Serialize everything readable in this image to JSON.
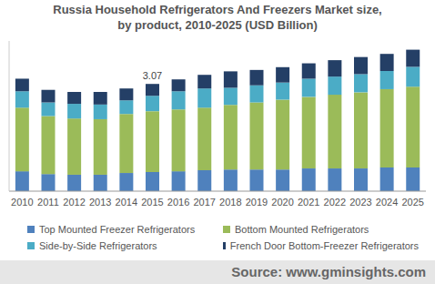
{
  "chart_data": {
    "type": "bar",
    "title": "Russia Household Refrigerators And Freezers Market size,",
    "subtitle": "by product, 2010-2025 (USD Billion)",
    "source": "Source: www.gminsights.com",
    "categories": [
      "2010",
      "2011",
      "2012",
      "2013",
      "2014",
      "2015",
      "2016",
      "2017",
      "2018",
      "2019",
      "2020",
      "2021",
      "2022",
      "2023",
      "2024",
      "2025"
    ],
    "series": [
      {
        "name": "Top Mounted Freezer Refrigerators",
        "color": "#4f81bd",
        "values": [
          0.57,
          0.49,
          0.47,
          0.47,
          0.52,
          0.55,
          0.57,
          0.6,
          0.62,
          0.62,
          0.62,
          0.65,
          0.65,
          0.65,
          0.68,
          0.68
        ]
      },
      {
        "name": "Bottom Mounted Refrigerators",
        "color": "#9bbb59",
        "values": [
          1.82,
          1.66,
          1.61,
          1.59,
          1.69,
          1.74,
          1.77,
          1.79,
          1.85,
          1.92,
          2.0,
          2.05,
          2.11,
          2.18,
          2.24,
          2.31
        ]
      },
      {
        "name": "Side-by-Side Refrigerators",
        "color": "#4bacc6",
        "values": [
          0.47,
          0.39,
          0.42,
          0.42,
          0.39,
          0.44,
          0.52,
          0.55,
          0.49,
          0.49,
          0.49,
          0.52,
          0.52,
          0.52,
          0.52,
          0.57
        ]
      },
      {
        "name": "French Door Bottom-Freezer Refrigerators",
        "color": "#243f66",
        "values": [
          0.36,
          0.36,
          0.34,
          0.36,
          0.34,
          0.34,
          0.34,
          0.39,
          0.47,
          0.44,
          0.44,
          0.44,
          0.47,
          0.49,
          0.49,
          0.49
        ]
      }
    ],
    "annotations": [
      {
        "category": "2015",
        "value": 3.07,
        "text": "3.07"
      }
    ],
    "ylim": [
      0,
      4.3
    ],
    "stacked": true,
    "tick_labels": "x",
    "grid": false,
    "legend": "bottom"
  }
}
